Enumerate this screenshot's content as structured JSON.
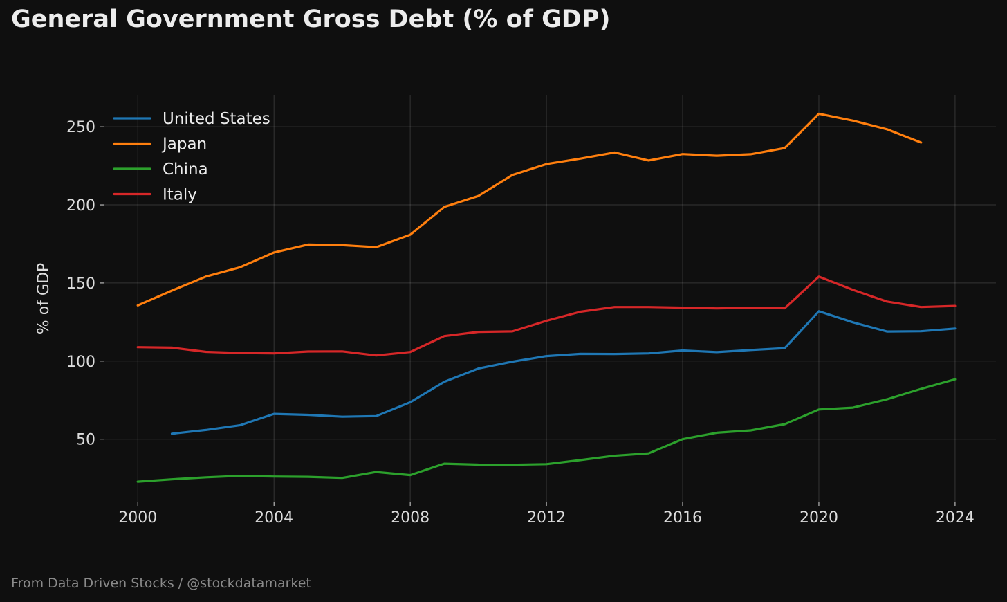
{
  "title": "General Government Gross Debt (% of GDP)",
  "footer": "From Data Driven Stocks / @stockdatamarket",
  "colors": {
    "background": "#0f0f0f",
    "text": "#dcdcdc"
  },
  "chart_data": {
    "type": "line",
    "title": "General Government Gross Debt (% of GDP)",
    "xlabel": "",
    "ylabel": "% of GDP",
    "xlim": [
      1999,
      2025.2
    ],
    "ylim": [
      10,
      270
    ],
    "xticks": [
      2000,
      2004,
      2008,
      2012,
      2016,
      2020,
      2024
    ],
    "yticks": [
      50,
      100,
      150,
      200,
      250
    ],
    "grid": true,
    "legend_position": "top-left",
    "series": [
      {
        "name": "United States",
        "color": "#1f77b4",
        "x": [
          2001,
          2002,
          2003,
          2004,
          2005,
          2006,
          2007,
          2008,
          2009,
          2010,
          2011,
          2012,
          2013,
          2014,
          2015,
          2016,
          2017,
          2018,
          2019,
          2020,
          2021,
          2022,
          2023,
          2024
        ],
        "values": [
          53.5,
          55.9,
          58.9,
          66.2,
          65.6,
          64.4,
          64.8,
          73.6,
          86.7,
          95.2,
          99.6,
          103.2,
          104.6,
          104.5,
          104.9,
          106.8,
          105.7,
          107.1,
          108.3,
          131.9,
          124.8,
          118.9,
          119.1,
          120.8
        ]
      },
      {
        "name": "Japan",
        "color": "#ff7f0e",
        "x": [
          2000,
          2001,
          2002,
          2003,
          2004,
          2005,
          2006,
          2007,
          2008,
          2009,
          2010,
          2011,
          2012,
          2013,
          2014,
          2015,
          2016,
          2017,
          2018,
          2019,
          2020,
          2021,
          2022,
          2023
        ],
        "values": [
          135.6,
          145.1,
          154.1,
          160.0,
          169.5,
          174.6,
          174.2,
          172.9,
          180.9,
          198.7,
          205.7,
          219.1,
          226.1,
          229.6,
          233.5,
          228.4,
          232.5,
          231.4,
          232.4,
          236.4,
          258.3,
          253.9,
          248.4,
          239.9
        ]
      },
      {
        "name": "China",
        "color": "#2ca02c",
        "x": [
          2000,
          2001,
          2002,
          2003,
          2004,
          2005,
          2006,
          2007,
          2008,
          2009,
          2010,
          2011,
          2012,
          2013,
          2014,
          2015,
          2016,
          2017,
          2018,
          2019,
          2020,
          2021,
          2022,
          2023,
          2024
        ],
        "values": [
          22.8,
          24.3,
          25.6,
          26.5,
          26.1,
          25.9,
          25.2,
          29.0,
          27.0,
          34.3,
          33.7,
          33.6,
          34.0,
          36.6,
          39.4,
          40.9,
          50.0,
          54.1,
          55.6,
          59.6,
          69.0,
          70.2,
          75.5,
          82.2,
          88.3
        ]
      },
      {
        "name": "Italy",
        "color": "#d62728",
        "x": [
          2000,
          2001,
          2002,
          2003,
          2004,
          2005,
          2006,
          2007,
          2008,
          2009,
          2010,
          2011,
          2012,
          2013,
          2014,
          2015,
          2016,
          2017,
          2018,
          2019,
          2020,
          2021,
          2022,
          2023,
          2024
        ],
        "values": [
          108.9,
          108.6,
          105.9,
          105.2,
          104.9,
          106.1,
          106.2,
          103.6,
          105.8,
          116.0,
          118.7,
          119.0,
          125.8,
          131.6,
          134.6,
          134.6,
          134.2,
          133.7,
          134.1,
          133.8,
          154.1,
          145.6,
          138.1,
          134.6,
          135.3
        ]
      }
    ]
  }
}
